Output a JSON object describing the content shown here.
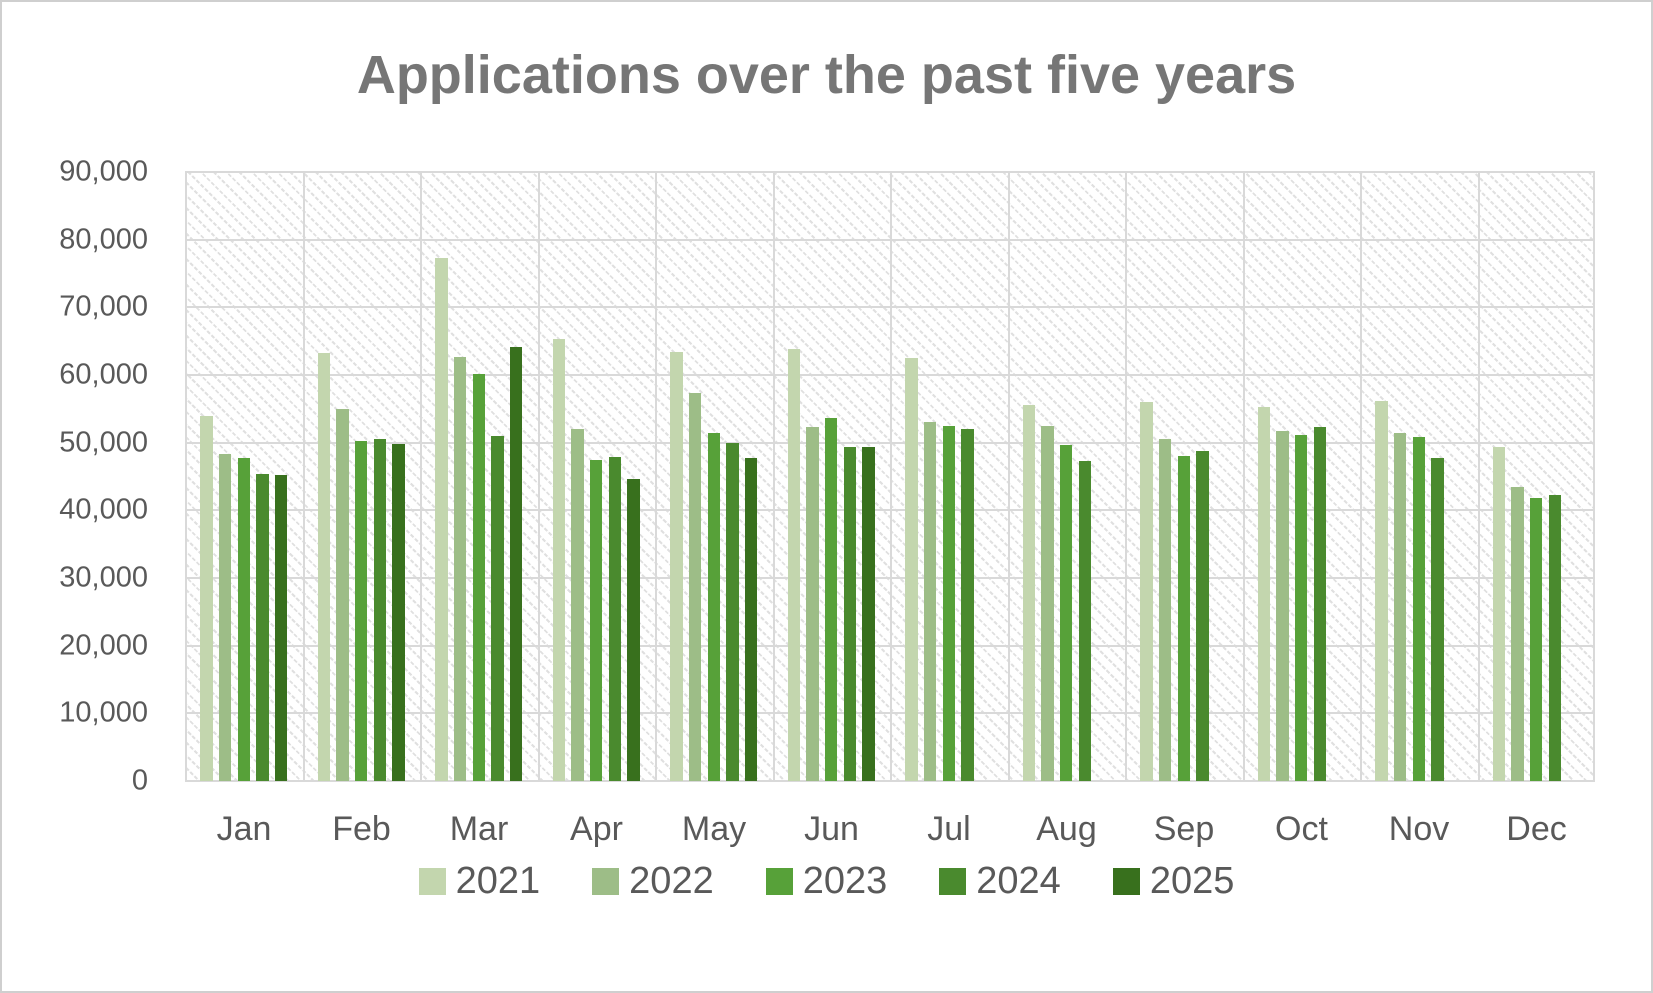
{
  "chart_data": {
    "type": "bar",
    "title": "Applications over the past five years",
    "categories": [
      "Jan",
      "Feb",
      "Mar",
      "Apr",
      "May",
      "Jun",
      "Jul",
      "Aug",
      "Sep",
      "Oct",
      "Nov",
      "Dec"
    ],
    "series": [
      {
        "name": "2021",
        "color": "#c3d6ae",
        "values": [
          54000,
          63200,
          77300,
          65300,
          63400,
          63800,
          62500,
          55600,
          56000,
          55200,
          56200,
          49300
        ]
      },
      {
        "name": "2022",
        "color": "#9dbd87",
        "values": [
          48400,
          55000,
          62700,
          52000,
          57400,
          52300,
          53000,
          52400,
          50500,
          51700,
          51400,
          43500
        ]
      },
      {
        "name": "2023",
        "color": "#57a139",
        "values": [
          47800,
          50200,
          60200,
          47400,
          51400,
          53700,
          52400,
          49700,
          48000,
          51100,
          50800,
          41800
        ]
      },
      {
        "name": "2024",
        "color": "#4a8a2e",
        "values": [
          45400,
          50500,
          51000,
          47900,
          50000,
          49300,
          52000,
          47300,
          48700,
          52300,
          47700,
          42200
        ]
      },
      {
        "name": "2025",
        "color": "#38701d",
        "values": [
          45200,
          49800,
          64100,
          44600,
          47800,
          49400,
          null,
          null,
          null,
          null,
          null,
          null
        ]
      }
    ],
    "ylim": [
      0,
      90000
    ],
    "ytick_interval": 10000,
    "ytick_labels": [
      "0",
      "10,000",
      "20,000",
      "30,000",
      "40,000",
      "50,000",
      "60,000",
      "70,000",
      "80,000",
      "90,000"
    ],
    "xlabel": "",
    "ylabel": "",
    "grid": true,
    "legend_position": "bottom",
    "plot_background": "diagonal-hatch"
  },
  "colors": {
    "title_text": "#767676",
    "axis_text": "#595959",
    "gridline": "#d9d9d9",
    "background": "#ffffff",
    "border": "#cfcfcf"
  }
}
